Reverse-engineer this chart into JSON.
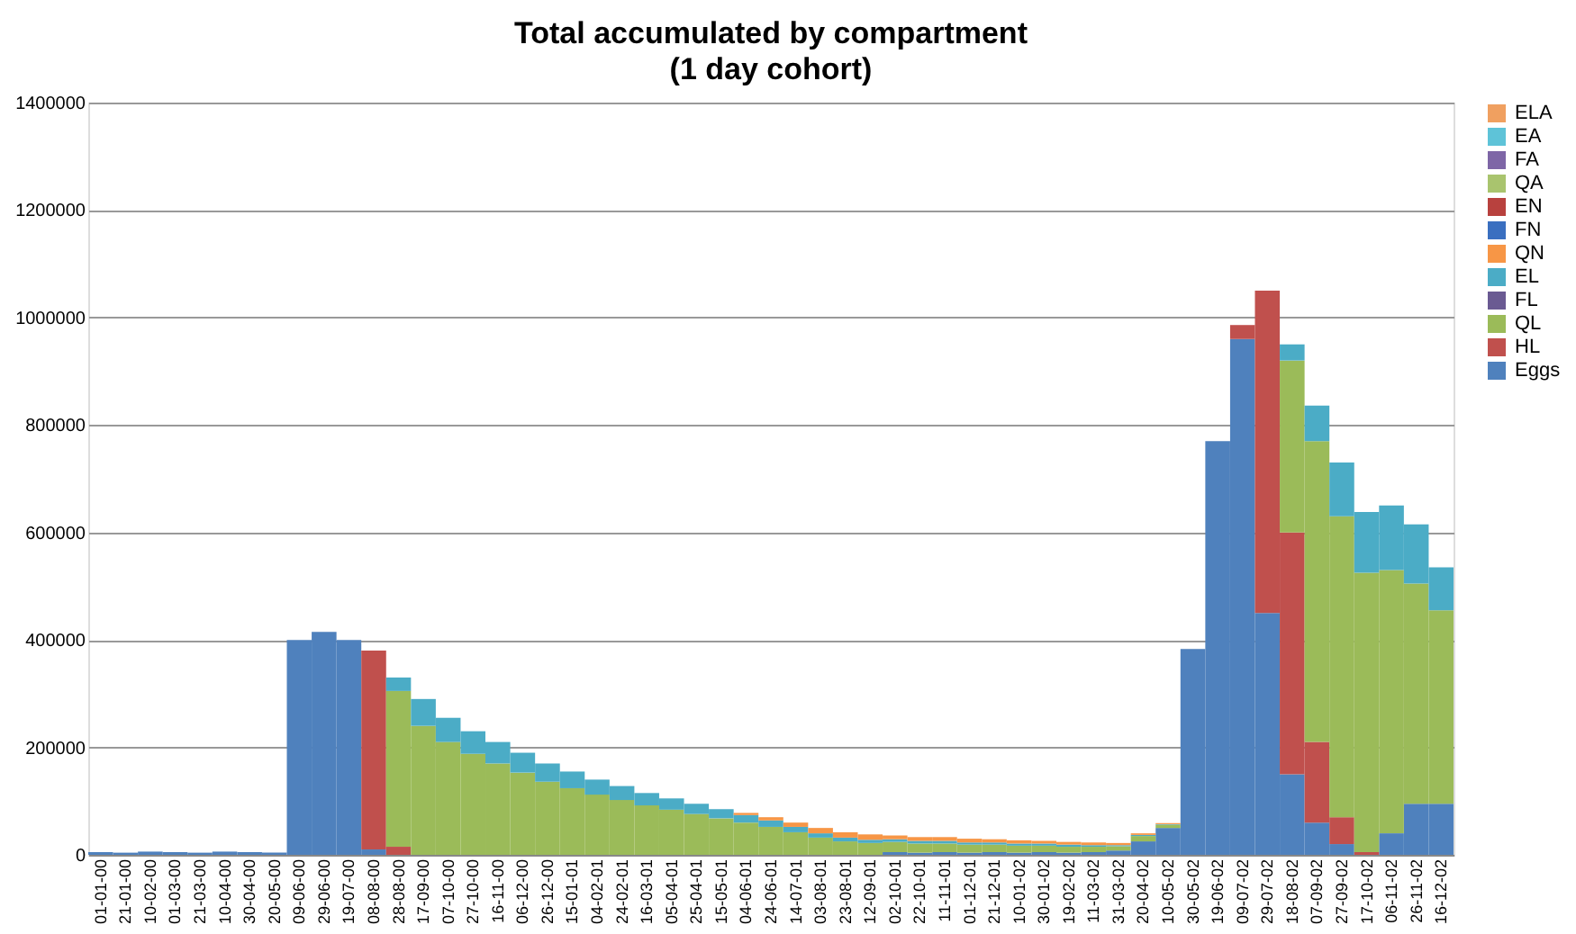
{
  "chart_data": {
    "type": "bar",
    "stacked": true,
    "title": "Total accumulated by compartment",
    "subtitle": "(1 day cohort)",
    "categories": [
      "01-01-00",
      "21-01-00",
      "10-02-00",
      "01-03-00",
      "21-03-00",
      "10-04-00",
      "30-04-00",
      "20-05-00",
      "09-06-00",
      "29-06-00",
      "19-07-00",
      "08-08-00",
      "28-08-00",
      "17-09-00",
      "07-10-00",
      "27-10-00",
      "16-11-00",
      "06-12-00",
      "26-12-00",
      "15-01-01",
      "04-02-01",
      "24-02-01",
      "16-03-01",
      "05-04-01",
      "25-04-01",
      "15-05-01",
      "04-06-01",
      "24-06-01",
      "14-07-01",
      "03-08-01",
      "23-08-01",
      "12-09-01",
      "02-10-01",
      "22-10-01",
      "11-11-01",
      "01-12-01",
      "21-12-01",
      "10-01-02",
      "30-01-02",
      "19-02-02",
      "11-03-02",
      "31-03-02",
      "20-04-02",
      "10-05-02",
      "30-05-02",
      "19-06-02",
      "09-07-02",
      "29-07-02",
      "18-08-02",
      "07-09-02",
      "27-09-02",
      "17-10-02",
      "06-11-02",
      "26-11-02",
      "16-12-02"
    ],
    "series": [
      {
        "name": "Eggs",
        "color": "#4f81bd",
        "values": [
          5000,
          4000,
          6000,
          5000,
          4000,
          6000,
          5000,
          4000,
          400000,
          415000,
          400000,
          10000,
          0,
          0,
          0,
          0,
          0,
          0,
          0,
          0,
          0,
          0,
          0,
          0,
          0,
          0,
          0,
          0,
          0,
          0,
          0,
          0,
          5000,
          4000,
          5000,
          4000,
          5000,
          4000,
          5000,
          4000,
          5000,
          8000,
          25000,
          50000,
          383000,
          770000,
          960000,
          450000,
          150000,
          60000,
          20000,
          0,
          40000,
          95000,
          95000
        ]
      },
      {
        "name": "HL",
        "color": "#c0504d",
        "values": [
          0,
          0,
          0,
          0,
          0,
          0,
          0,
          0,
          0,
          0,
          0,
          370000,
          15000,
          0,
          0,
          0,
          0,
          0,
          0,
          0,
          0,
          0,
          0,
          0,
          0,
          0,
          0,
          0,
          0,
          0,
          0,
          0,
          0,
          0,
          0,
          0,
          0,
          0,
          0,
          0,
          0,
          0,
          0,
          0,
          0,
          0,
          26000,
          600000,
          450000,
          150000,
          50000,
          5000,
          0,
          0,
          0
        ]
      },
      {
        "name": "QL",
        "color": "#9bbb59",
        "values": [
          0,
          0,
          0,
          0,
          0,
          0,
          0,
          0,
          0,
          0,
          0,
          0,
          290000,
          240000,
          210000,
          188000,
          170000,
          153000,
          136000,
          124000,
          112000,
          102000,
          92000,
          84000,
          76000,
          68000,
          60000,
          52000,
          42000,
          32000,
          25000,
          22000,
          19000,
          17000,
          16000,
          15000,
          14000,
          13000,
          12000,
          11000,
          10000,
          8000,
          10000,
          6000,
          0,
          0,
          0,
          0,
          320000,
          560000,
          560000,
          520000,
          490000,
          410000,
          360000
        ]
      },
      {
        "name": "FL",
        "color": "#6a5a92",
        "values": [
          0,
          0,
          0,
          0,
          0,
          0,
          0,
          0,
          0,
          0,
          0,
          0,
          0,
          0,
          0,
          0,
          0,
          0,
          0,
          0,
          0,
          0,
          0,
          0,
          0,
          0,
          0,
          0,
          0,
          0,
          0,
          0,
          0,
          0,
          0,
          0,
          0,
          0,
          0,
          0,
          0,
          0,
          0,
          0,
          0,
          0,
          0,
          0,
          0,
          0,
          0,
          0,
          0,
          0,
          0
        ]
      },
      {
        "name": "EL",
        "color": "#4bacc6",
        "values": [
          0,
          0,
          0,
          0,
          0,
          0,
          0,
          0,
          0,
          0,
          0,
          0,
          25000,
          50000,
          45000,
          42000,
          40000,
          37000,
          34000,
          31000,
          28000,
          26000,
          23000,
          21000,
          19000,
          17000,
          14000,
          12000,
          10000,
          8000,
          7000,
          6000,
          5000,
          5000,
          5000,
          4000,
          4000,
          4000,
          4000,
          4000,
          3000,
          2000,
          2000,
          1000,
          0,
          0,
          0,
          0,
          30000,
          66000,
          100000,
          113000,
          120000,
          110000,
          80000
        ]
      },
      {
        "name": "QN",
        "color": "#f79646",
        "values": [
          0,
          0,
          0,
          0,
          0,
          0,
          0,
          0,
          0,
          0,
          0,
          0,
          0,
          0,
          0,
          0,
          0,
          0,
          0,
          0,
          0,
          0,
          0,
          0,
          0,
          0,
          4000,
          6000,
          8000,
          10000,
          10000,
          10000,
          7000,
          7000,
          7000,
          7000,
          6000,
          6000,
          5000,
          5000,
          5000,
          4000,
          3000,
          2000,
          0,
          0,
          0,
          0,
          0,
          0,
          0,
          0,
          0,
          0,
          0
        ]
      },
      {
        "name": "FN",
        "color": "#3a6fc0",
        "values": [
          0,
          0,
          0,
          0,
          0,
          0,
          0,
          0,
          0,
          0,
          0,
          0,
          0,
          0,
          0,
          0,
          0,
          0,
          0,
          0,
          0,
          0,
          0,
          0,
          0,
          0,
          0,
          0,
          0,
          0,
          0,
          0,
          0,
          0,
          0,
          0,
          0,
          0,
          0,
          0,
          0,
          0,
          0,
          0,
          0,
          0,
          0,
          0,
          0,
          0,
          0,
          0,
          0,
          0,
          0
        ]
      },
      {
        "name": "EN",
        "color": "#b8413e",
        "values": [
          0,
          0,
          0,
          0,
          0,
          0,
          0,
          0,
          0,
          0,
          0,
          0,
          0,
          0,
          0,
          0,
          0,
          0,
          0,
          0,
          0,
          0,
          0,
          0,
          0,
          0,
          0,
          0,
          0,
          0,
          0,
          0,
          0,
          0,
          0,
          0,
          0,
          0,
          0,
          0,
          0,
          0,
          0,
          0,
          0,
          0,
          0,
          0,
          0,
          0,
          0,
          0,
          0,
          0,
          0
        ]
      },
      {
        "name": "QA",
        "color": "#a9c46e",
        "values": [
          0,
          0,
          0,
          0,
          0,
          0,
          0,
          0,
          0,
          0,
          0,
          0,
          0,
          0,
          0,
          0,
          0,
          0,
          0,
          0,
          0,
          0,
          0,
          0,
          0,
          0,
          0,
          0,
          0,
          0,
          0,
          0,
          0,
          0,
          0,
          0,
          0,
          0,
          0,
          0,
          0,
          0,
          0,
          0,
          0,
          0,
          0,
          0,
          0,
          0,
          0,
          0,
          0,
          0,
          0
        ]
      },
      {
        "name": "FA",
        "color": "#7e66a6",
        "values": [
          0,
          0,
          0,
          0,
          0,
          0,
          0,
          0,
          0,
          0,
          0,
          0,
          0,
          0,
          0,
          0,
          0,
          0,
          0,
          0,
          0,
          0,
          0,
          0,
          0,
          0,
          0,
          0,
          0,
          0,
          0,
          0,
          0,
          0,
          0,
          0,
          0,
          0,
          0,
          0,
          0,
          0,
          0,
          0,
          0,
          0,
          0,
          0,
          0,
          0,
          0,
          0,
          0,
          0,
          0
        ]
      },
      {
        "name": "EA",
        "color": "#5ec3d8",
        "values": [
          0,
          0,
          0,
          0,
          0,
          0,
          0,
          0,
          0,
          0,
          0,
          0,
          0,
          0,
          0,
          0,
          0,
          0,
          0,
          0,
          0,
          0,
          0,
          0,
          0,
          0,
          0,
          0,
          0,
          0,
          0,
          0,
          0,
          0,
          0,
          0,
          0,
          0,
          0,
          0,
          0,
          0,
          0,
          0,
          0,
          0,
          0,
          0,
          0,
          0,
          0,
          0,
          0,
          0,
          0
        ]
      },
      {
        "name": "ELA",
        "color": "#f0a060",
        "values": [
          0,
          0,
          0,
          0,
          0,
          0,
          0,
          0,
          0,
          0,
          0,
          0,
          0,
          0,
          0,
          0,
          0,
          0,
          0,
          0,
          0,
          0,
          0,
          0,
          0,
          0,
          0,
          0,
          0,
          0,
          0,
          0,
          0,
          0,
          0,
          0,
          0,
          0,
          0,
          0,
          0,
          0,
          0,
          0,
          0,
          0,
          0,
          0,
          0,
          0,
          0,
          0,
          0,
          0,
          0
        ]
      }
    ],
    "ylim": [
      0,
      1400000
    ],
    "yticks": [
      0,
      200000,
      400000,
      600000,
      800000,
      1000000,
      1200000,
      1400000
    ],
    "grid": "y",
    "legend": "right"
  }
}
